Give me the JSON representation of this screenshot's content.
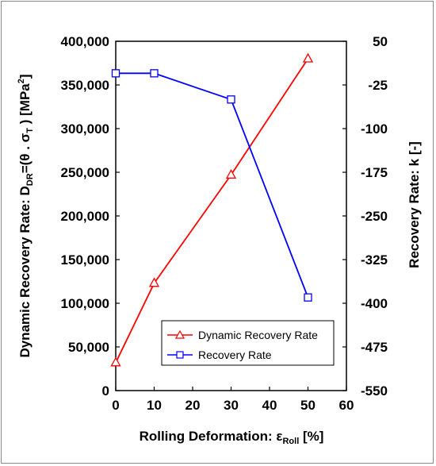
{
  "chart_data": {
    "type": "line",
    "xlabel": {
      "main": "Rolling Deformation: ε",
      "sub": "Roll",
      "unit": " [%]"
    },
    "ylabel_left": {
      "prefix": "Dynamic Recovery Rate:  D",
      "sub": "DR",
      "mid": "=(θ . σ",
      "sub2": "T",
      "suffix": " ) [MPa",
      "sup": "2",
      "end": "]"
    },
    "ylabel_right": "Recovery Rate: k [-]",
    "xlim": [
      0,
      60
    ],
    "ylim_left": [
      0,
      400000
    ],
    "ylim_right": [
      -550,
      50
    ],
    "x_ticks": [
      "0",
      "10",
      "20",
      "30",
      "40",
      "50",
      "60"
    ],
    "y_left_ticks": [
      "0",
      "50,000",
      "100,000",
      "150,000",
      "200,000",
      "250,000",
      "300,000",
      "350,000",
      "400,000"
    ],
    "y_right_ticks": [
      "-550",
      "-475",
      "-400",
      "-325",
      "-250",
      "-175",
      "-100",
      "-25",
      "50"
    ],
    "grid": false,
    "legend_position": "bottom-right",
    "series": [
      {
        "name": "Dynamic Recovery Rate",
        "axis": "left",
        "color": "#ff0000",
        "marker": "triangle",
        "x": [
          0,
          10,
          30,
          50
        ],
        "y": [
          32000,
          123000,
          247000,
          380000
        ]
      },
      {
        "name": "Recovery Rate",
        "axis": "right",
        "color": "#0000ff",
        "marker": "square",
        "x": [
          0,
          10,
          30,
          50
        ],
        "y": [
          -5,
          -5,
          -50,
          -390
        ]
      }
    ]
  }
}
